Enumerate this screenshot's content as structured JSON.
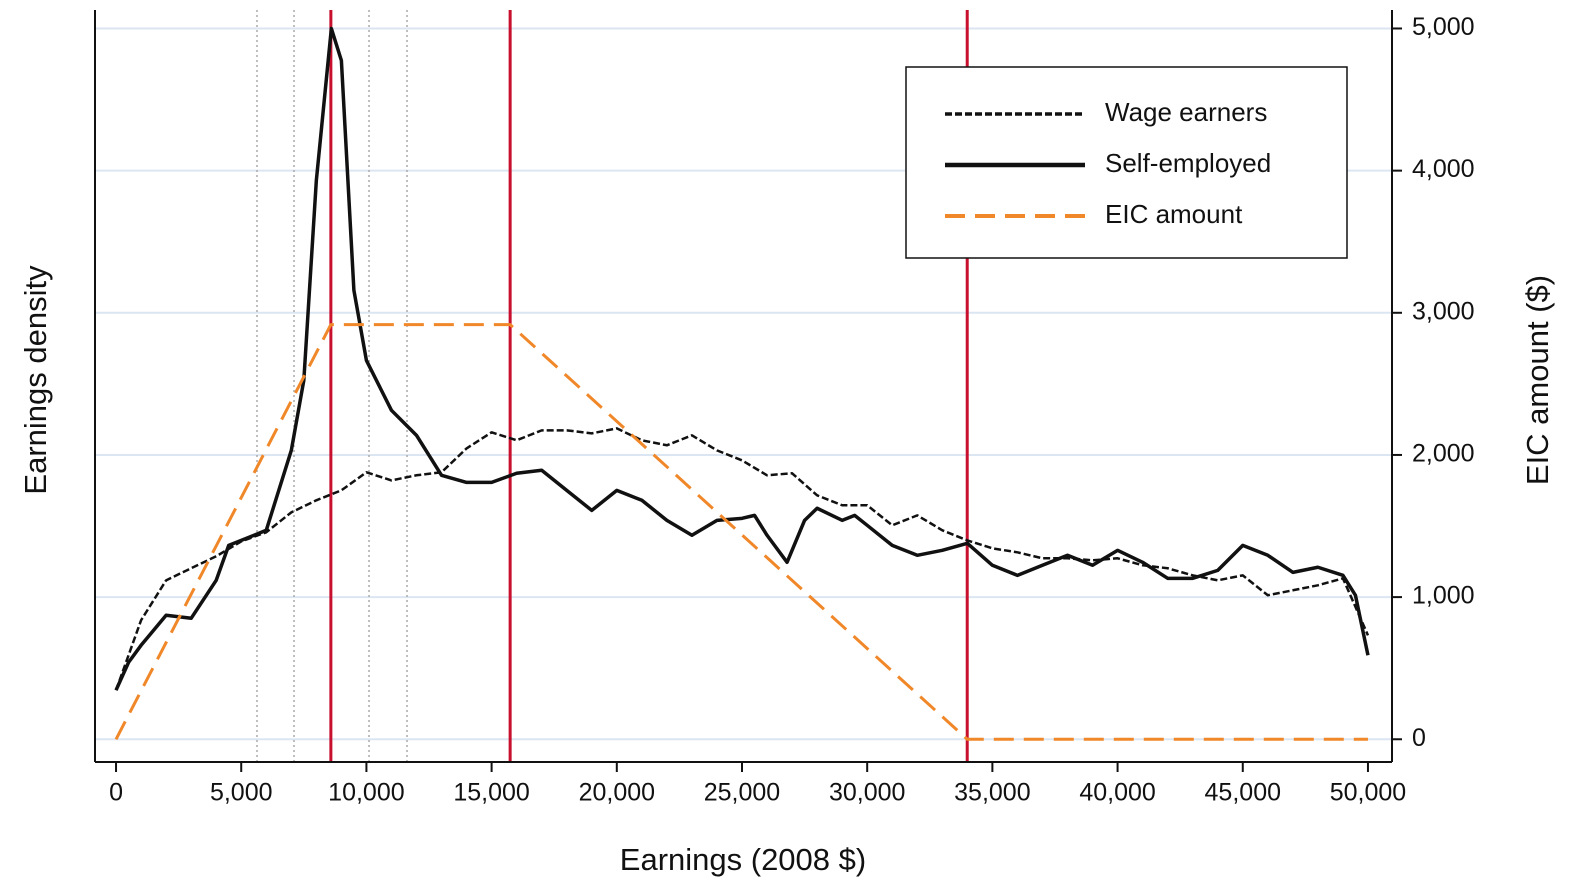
{
  "chart_data": {
    "type": "line",
    "x_label": "Earnings (2008 $)",
    "y_label": "Earnings density",
    "y2_label": "EIC amount ($)",
    "xlim": [
      -840,
      50960
    ],
    "ylim": [
      -160,
      5130
    ],
    "y2lim": [
      -160,
      5130
    ],
    "xticks": [
      0,
      {
        "value": 5000,
        "label": "5,000"
      },
      {
        "value": 10000,
        "label": "10,000"
      },
      {
        "value": 15000,
        "label": "15,000"
      },
      {
        "value": 20000,
        "label": "20,000"
      },
      {
        "value": 25000,
        "label": "25,000"
      },
      {
        "value": 30000,
        "label": "30,000"
      },
      {
        "value": 35000,
        "label": "35,000"
      },
      {
        "value": 40000,
        "label": "40,000"
      },
      {
        "value": 45000,
        "label": "45,000"
      },
      {
        "value": 50000,
        "label": "50,000"
      }
    ],
    "y2ticks": [
      0,
      {
        "value": 1000,
        "label": "1,000"
      },
      {
        "value": 2000,
        "label": "2,000"
      },
      {
        "value": 3000,
        "label": "3,000"
      },
      {
        "value": 4000,
        "label": "4,000"
      },
      {
        "value": 5000,
        "label": "5,000"
      }
    ],
    "grid": true,
    "legend": "upper right",
    "series": [
      {
        "name": "Wage earners",
        "color": "#111111",
        "dash": "short",
        "x": [
          0,
          1000,
          2000,
          3000,
          4000,
          5000,
          6000,
          7000,
          8000,
          9000,
          10000,
          11000,
          12000,
          13000,
          14000,
          15000,
          16000,
          17000,
          18000,
          19000,
          20000,
          21000,
          22000,
          23000,
          24000,
          25000,
          26000,
          27000,
          28000,
          29000,
          30000,
          31000,
          32000,
          33000,
          34000,
          35000,
          36000,
          37000,
          38000,
          39000,
          40000,
          41000,
          42000,
          43000,
          44000,
          45000,
          46000,
          47000,
          48000,
          49000,
          50000
        ],
        "values": [
          345,
          837,
          1118,
          1203,
          1287,
          1392,
          1456,
          1596,
          1681,
          1751,
          1878,
          1821,
          1857,
          1878,
          2046,
          2159,
          2103,
          2173,
          2173,
          2152,
          2187,
          2103,
          2068,
          2138,
          2032,
          1962,
          1857,
          1871,
          1716,
          1646,
          1646,
          1505,
          1575,
          1470,
          1399,
          1343,
          1315,
          1273,
          1273,
          1259,
          1273,
          1224,
          1203,
          1153,
          1118,
          1153,
          1013,
          1048,
          1083,
          1132,
          731
        ]
      },
      {
        "name": "Self-employed",
        "color": "#111111",
        "dash": "solid",
        "x": [
          0,
          500,
          1000,
          2000,
          3000,
          4000,
          4500,
          5000,
          6000,
          7000,
          7500,
          8000,
          8600,
          9000,
          9500,
          10000,
          11000,
          12000,
          13000,
          14000,
          15000,
          16000,
          17000,
          18000,
          19000,
          20000,
          21000,
          22000,
          23000,
          24000,
          25000,
          25500,
          26000,
          26800,
          27500,
          28000,
          29000,
          29500,
          30000,
          31000,
          32000,
          33000,
          34000,
          35000,
          36000,
          37000,
          38000,
          39000,
          40000,
          41000,
          42000,
          43000,
          44000,
          45000,
          46000,
          47000,
          48000,
          49000,
          49500,
          50000
        ],
        "values": [
          345,
          541,
          661,
          872,
          851,
          1118,
          1364,
          1399,
          1470,
          2032,
          2525,
          3931,
          5000,
          4775,
          3158,
          2665,
          2314,
          2138,
          1857,
          1807,
          1807,
          1871,
          1892,
          1751,
          1610,
          1751,
          1681,
          1540,
          1435,
          1540,
          1554,
          1575,
          1435,
          1245,
          1540,
          1625,
          1540,
          1575,
          1505,
          1364,
          1294,
          1329,
          1378,
          1224,
          1153,
          1224,
          1294,
          1224,
          1329,
          1245,
          1132,
          1132,
          1188,
          1364,
          1294,
          1174,
          1210,
          1153,
          1013,
          591
        ]
      },
      {
        "name": "EIC amount",
        "color": "#f0882a",
        "dash": "long",
        "axis": "y2",
        "x": [
          0,
          8580,
          15740,
          33995,
          50000
        ],
        "values": [
          0,
          2917,
          2917,
          0,
          0
        ]
      }
    ],
    "reference_lines": [
      {
        "x": 5630,
        "color": "#aaaaaa",
        "style": "dotted"
      },
      {
        "x": 7108,
        "color": "#aaaaaa",
        "style": "dotted"
      },
      {
        "x": 10104,
        "color": "#aaaaaa",
        "style": "dotted"
      },
      {
        "x": 11621,
        "color": "#aaaaaa",
        "style": "dotted"
      },
      {
        "x": 8580,
        "color": "#c8102e",
        "style": "solid"
      },
      {
        "x": 15740,
        "color": "#c8102e",
        "style": "solid"
      },
      {
        "x": 33995,
        "color": "#c8102e",
        "style": "solid"
      }
    ]
  }
}
